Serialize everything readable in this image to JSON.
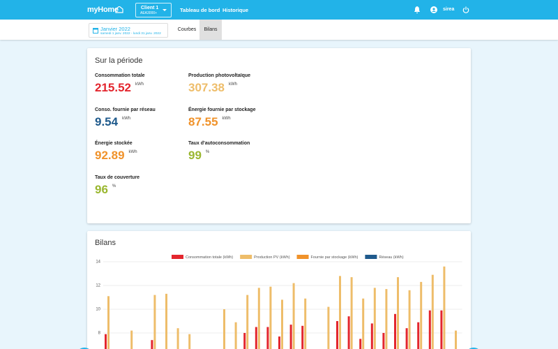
{
  "header": {
    "logo": "myHome",
    "client": {
      "name": "Client 1",
      "code": "AEA3000+"
    },
    "nav": [
      "Tableau de bord",
      "Historique"
    ],
    "user": "sirea"
  },
  "subbar": {
    "period": "Janvier 2022",
    "range": "samedi 1 janv. 2022 - lundi 31 janv. 2022",
    "tabs": [
      "Courbes",
      "Bilans"
    ],
    "active_tab": 1
  },
  "summary": {
    "title": "Sur la période",
    "metrics": [
      {
        "label": "Consommation totale",
        "value": 215.52,
        "unit": "kWh",
        "color": "#e3262e"
      },
      {
        "label": "Production photovoltaïque",
        "value": 307.38,
        "unit": "kWh",
        "color": "#eebd6a"
      },
      {
        "label": "Conso. fournie par réseau",
        "value": 9.54,
        "unit": "kWh",
        "color": "#1f5a8c"
      },
      {
        "label": "Énergie fournie par stockage",
        "value": 87.55,
        "unit": "kWh",
        "color": "#f0922a"
      },
      {
        "label": "Énergie stockée",
        "value": 92.89,
        "unit": "kWh",
        "color": "#f0922a"
      },
      {
        "label": "Taux d'autoconsommation",
        "value": 99,
        "unit": "%",
        "color": "#9ab730"
      },
      {
        "label": "Taux de couverture",
        "value": 96,
        "unit": "%",
        "color": "#9ab730"
      }
    ]
  },
  "chart_data": {
    "type": "bar",
    "title": "Bilans",
    "categories": [
      null,
      null,
      null,
      null,
      null,
      null,
      null,
      null,
      null,
      null,
      null,
      null,
      null,
      null,
      null,
      null,
      null,
      null,
      null,
      null,
      null,
      null,
      null,
      null,
      null,
      null,
      null,
      null,
      null,
      null,
      null
    ],
    "series": [
      {
        "name": "Consommation totale (kWh)",
        "color": "#e3262e",
        "values": [
          7.9,
          null,
          null,
          null,
          7.4,
          null,
          null,
          null,
          null,
          null,
          null,
          null,
          8.0,
          8.5,
          8.5,
          7.7,
          8.7,
          8.6,
          null,
          null,
          9.0,
          9.4,
          7.5,
          8.8,
          8.0,
          9.6,
          8.4,
          8.9,
          9.9,
          9.9,
          null
        ]
      },
      {
        "name": "Production PV (kWh)",
        "color": "#eebd6a",
        "values": [
          11.1,
          null,
          8.2,
          null,
          11.2,
          11.3,
          8.4,
          7.9,
          null,
          null,
          10.0,
          8.9,
          11.2,
          11.8,
          11.9,
          10.8,
          12.2,
          10.9,
          null,
          10.2,
          12.8,
          12.7,
          10.9,
          11.8,
          11.7,
          12.7,
          11.6,
          12.3,
          12.9,
          13.6,
          8.2
        ]
      },
      {
        "name": "Fournie par stockage (kWh)",
        "color": "#f0922a",
        "values": [
          null,
          null,
          null,
          null,
          null,
          null,
          null,
          null,
          null,
          null,
          null,
          null,
          null,
          null,
          null,
          null,
          null,
          null,
          null,
          null,
          null,
          null,
          null,
          null,
          null,
          null,
          null,
          null,
          null,
          null,
          null
        ]
      },
      {
        "name": "Réseau (kWh)",
        "color": "#1f5a8c",
        "values": [
          null,
          null,
          null,
          null,
          null,
          null,
          null,
          null,
          null,
          null,
          null,
          null,
          null,
          null,
          null,
          null,
          null,
          null,
          null,
          null,
          null,
          null,
          null,
          null,
          null,
          null,
          null,
          null,
          null,
          null,
          null
        ]
      }
    ],
    "ylim": [
      6.6,
      14
    ],
    "yticks": [
      8,
      10,
      12,
      14
    ],
    "grid": true,
    "legend": "top"
  }
}
